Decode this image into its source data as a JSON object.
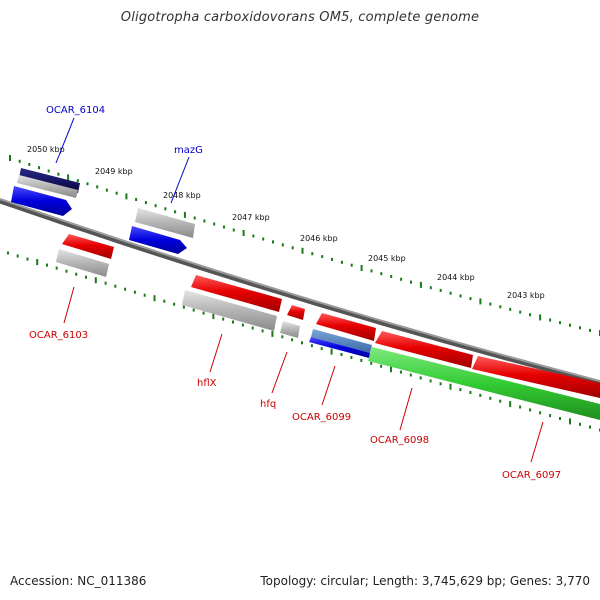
{
  "title": "Oligotropha carboxidovorans OM5, complete genome",
  "footer": {
    "accession": "Accession: NC_011386",
    "summary": "Topology: circular; Length: 3,745,629 bp; Genes: 3,770"
  },
  "colors": {
    "backbone": "#777777",
    "tick": "#1a7a1a",
    "gene_red": "#e60000",
    "gene_blue": "#0000dd",
    "gene_navy": "#0a0a6a",
    "gene_green": "#33cc33",
    "gene_grey": "#b4b4b4",
    "label_blue": "#0000cc",
    "label_red": "#cc0000"
  },
  "kbp_ticks": [
    {
      "label": "2050 kbp"
    },
    {
      "label": "2049 kbp"
    },
    {
      "label": "2048 kbp"
    },
    {
      "label": "2047 kbp"
    },
    {
      "label": "2046 kbp"
    },
    {
      "label": "2045 kbp"
    },
    {
      "label": "2044 kbp"
    },
    {
      "label": "2043 kbp"
    }
  ],
  "gene_labels": [
    {
      "text": "OCAR_6104",
      "color": "label_blue"
    },
    {
      "text": "mazG",
      "color": "label_blue"
    },
    {
      "text": "OCAR_6103",
      "color": "label_red"
    },
    {
      "text": "hflX",
      "color": "label_red"
    },
    {
      "text": "hfq",
      "color": "label_red"
    },
    {
      "text": "OCAR_6099",
      "color": "label_red"
    },
    {
      "text": "OCAR_6098",
      "color": "label_red"
    },
    {
      "text": "OCAR_6097",
      "color": "label_red"
    }
  ]
}
